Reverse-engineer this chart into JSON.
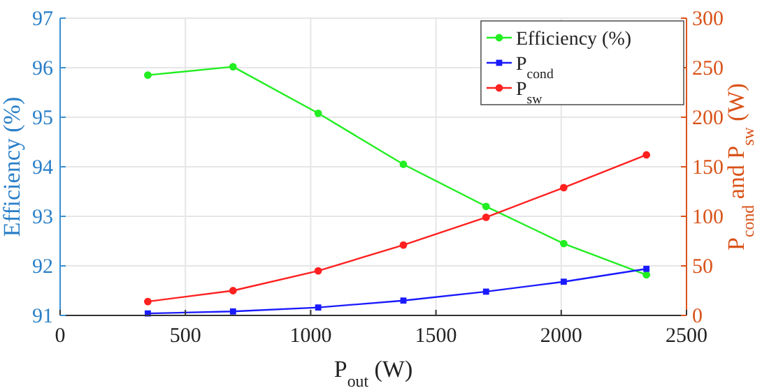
{
  "chart_data": {
    "type": "line",
    "xlabel": "P$_{out}$ (W)",
    "ylabel": "Efficiency (%)",
    "y2label": "P$_{cond}$ and P$_{sw}$ (W)",
    "x": [
      350,
      690,
      1030,
      1370,
      1700,
      2010,
      2340
    ],
    "xlim": [
      0,
      2500
    ],
    "xticks": [
      0,
      500,
      1000,
      1500,
      2000,
      2500
    ],
    "ylim": [
      91,
      97
    ],
    "yticks": [
      91,
      92,
      93,
      94,
      95,
      96,
      97
    ],
    "y2lim": [
      0,
      300
    ],
    "y2ticks": [
      0,
      50,
      100,
      150,
      200,
      250,
      300
    ],
    "grid": true,
    "legend": "top right",
    "line_style": "solid",
    "series": [
      {
        "name": "Efficiency (%)",
        "color": "#22ee22",
        "marker": "circle",
        "values": [
          95.85,
          96.02,
          95.08,
          94.05,
          93.2,
          92.45,
          91.82
        ]
      },
      {
        "name": "P$_{cond}$",
        "color": "#1a1aff",
        "marker": "square",
        "axis": "y2",
        "values": [
          2,
          4,
          8,
          15,
          24,
          34,
          47
        ]
      },
      {
        "name": "P$_{sw}$",
        "color": "#ff2020",
        "marker": "circle",
        "axis": "y2",
        "values": [
          14,
          25,
          45,
          71,
          99,
          129,
          162
        ]
      }
    ]
  }
}
